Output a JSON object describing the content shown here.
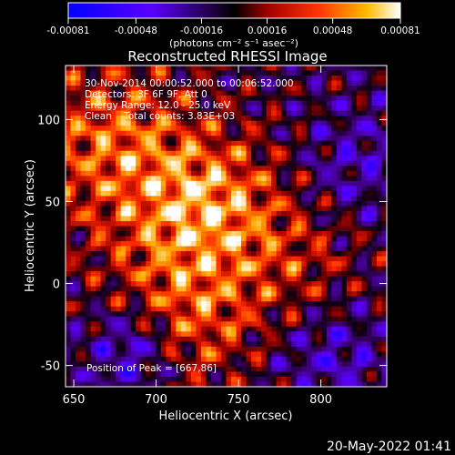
{
  "colors": {
    "background": "#000000",
    "text": "#ffffff"
  },
  "chart_data": {
    "type": "heatmap",
    "title": "Reconstructed RHESSI Image",
    "xlabel": "Heliocentric X (arcsec)",
    "ylabel": "Heliocentric Y (arcsec)",
    "xlim": [
      645,
      840
    ],
    "ylim": [
      -63,
      133
    ],
    "xticks": [
      650,
      700,
      750,
      800
    ],
    "yticks": [
      -50,
      0,
      50,
      100
    ],
    "xtick_labels": [
      "650",
      "700",
      "750",
      "800"
    ],
    "ytick_labels": [
      "-50",
      "0",
      "50",
      "100"
    ],
    "colorbar": {
      "min": -0.00081,
      "max": 0.00081,
      "ticks": [
        -0.00081,
        -0.00048,
        -0.00016,
        0.00016,
        0.00048,
        0.00081
      ],
      "tick_labels": [
        "-0.00081",
        "-0.00048",
        "-0.00016",
        "0.00016",
        "0.00048",
        "0.00081"
      ],
      "unit_label": "(photons cm⁻² s⁻¹ asec⁻²)",
      "colors": [
        "#0000ff",
        "#6a00ff",
        "#000000",
        "#ff0000",
        "#ff9900",
        "#ffffff"
      ]
    },
    "annotations": {
      "time_range": "30-Nov-2014 00:00:52.000 to 00:06:52.000",
      "detectors": "Detectors: 3F 6F 9F, Att 0",
      "energy_range": "Energy Range: 12.0 - 25.0 keV",
      "method": "Clean    Total counts: 3.83E+03",
      "peak": "Position of Peak = [667,86]"
    },
    "grid": false
  },
  "footer": {
    "timestamp": "20-May-2022 01:41"
  }
}
